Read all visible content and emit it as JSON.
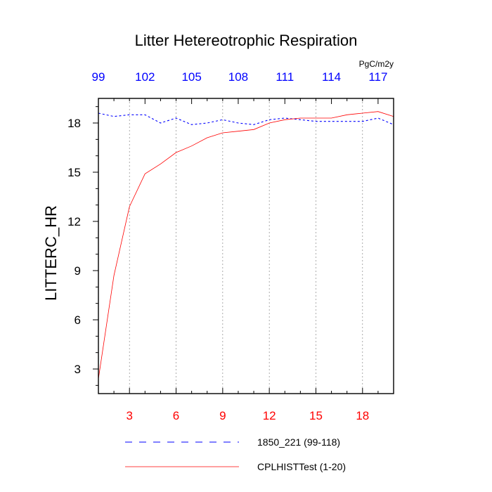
{
  "chart_data": {
    "type": "line",
    "title": "Litter Hetereotrophic Respiration",
    "ylabel": "LITTERC_HR",
    "units": "PgC/m2y",
    "xlim": [
      1,
      20
    ],
    "ylim": [
      1.5,
      19.5
    ],
    "x_ticks": [
      3,
      6,
      9,
      12,
      15,
      18
    ],
    "y_ticks": [
      3,
      6,
      9,
      12,
      15,
      18
    ],
    "x_tick_labels": [
      "3",
      "6",
      "9",
      "12",
      "15",
      "18"
    ],
    "y_tick_labels": [
      "3",
      "6",
      "9",
      "12",
      "15",
      "18"
    ],
    "top_axis": {
      "offset": 98,
      "ticks": [
        99,
        102,
        105,
        108,
        111,
        114,
        117
      ],
      "tick_labels": [
        "99",
        "102",
        "105",
        "108",
        "111",
        "114",
        "117"
      ]
    },
    "colors": {
      "bottom_axis": "#ff0000",
      "top_axis": "#0000ff",
      "axis": "#000000",
      "grid": "#888888"
    },
    "series": [
      {
        "name": "1850_221 (99-118)",
        "color": "#0000ff",
        "dash": true,
        "x": [
          1,
          2,
          3,
          4,
          5,
          6,
          7,
          8,
          9,
          10,
          11,
          12,
          13,
          14,
          15,
          16,
          17,
          18,
          19,
          20
        ],
        "values": [
          18.6,
          18.4,
          18.5,
          18.5,
          18.0,
          18.3,
          17.9,
          18.0,
          18.2,
          18.0,
          17.9,
          18.2,
          18.3,
          18.2,
          18.1,
          18.1,
          18.1,
          18.1,
          18.3,
          17.9
        ]
      },
      {
        "name": "CPLHISTTest (1-20)",
        "color": "#ff0000",
        "dash": false,
        "x": [
          1,
          2,
          3,
          4,
          5,
          6,
          7,
          8,
          9,
          10,
          11,
          12,
          13,
          14,
          15,
          16,
          17,
          18,
          19,
          20
        ],
        "values": [
          2.4,
          8.7,
          12.9,
          14.9,
          15.5,
          16.2,
          16.6,
          17.1,
          17.4,
          17.5,
          17.6,
          18.0,
          18.2,
          18.3,
          18.3,
          18.3,
          18.5,
          18.6,
          18.7,
          18.4
        ]
      }
    ]
  }
}
